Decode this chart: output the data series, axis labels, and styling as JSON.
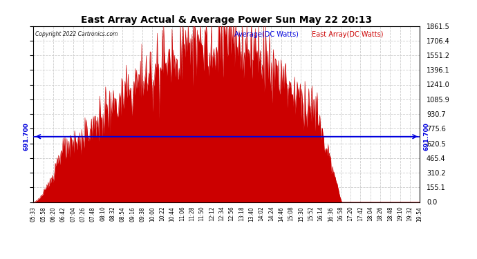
{
  "title": "East Array Actual & Average Power Sun May 22 20:13",
  "copyright": "Copyright 2022 Cartronics.com",
  "legend_avg": "Average(DC Watts)",
  "legend_east": "East Array(DC Watts)",
  "avg_value": 691.7,
  "avg_label": "691.700",
  "y_ticks": [
    0.0,
    155.1,
    310.2,
    465.4,
    620.5,
    775.6,
    930.7,
    1085.9,
    1241.0,
    1396.1,
    1551.2,
    1706.4,
    1861.5
  ],
  "ymax": 1861.5,
  "x_labels": [
    "05:33",
    "05:58",
    "06:20",
    "06:42",
    "07:04",
    "07:26",
    "07:48",
    "08:10",
    "08:32",
    "08:54",
    "09:16",
    "09:38",
    "10:00",
    "10:22",
    "10:44",
    "11:06",
    "11:28",
    "11:50",
    "12:12",
    "12:34",
    "12:56",
    "13:18",
    "13:40",
    "14:02",
    "14:24",
    "14:46",
    "15:08",
    "15:30",
    "15:52",
    "16:14",
    "16:36",
    "16:58",
    "17:20",
    "17:42",
    "18:04",
    "18:26",
    "18:48",
    "19:10",
    "19:32",
    "19:54"
  ],
  "bg_color": "#ffffff",
  "grid_color": "#cccccc",
  "fill_color": "#cc0000",
  "avg_line_color": "#0000dd",
  "title_color": "#000000"
}
